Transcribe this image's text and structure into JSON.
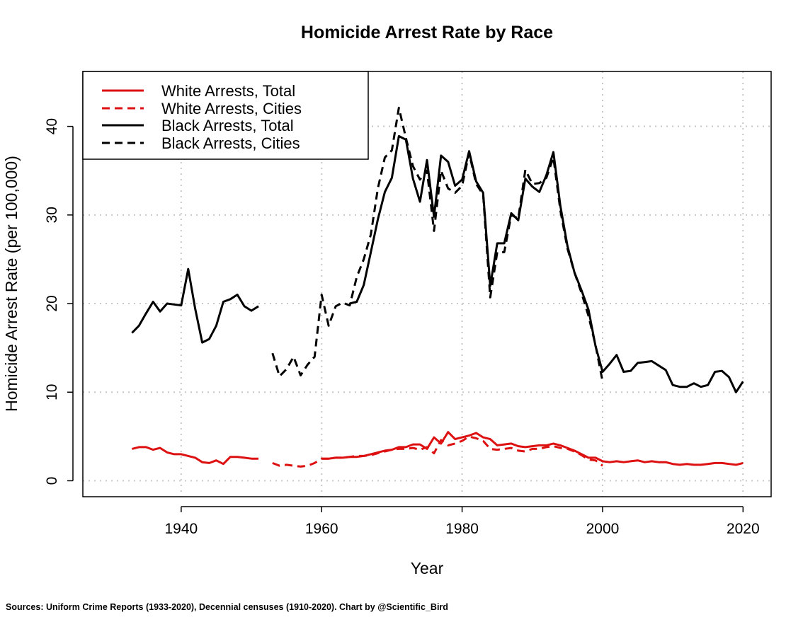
{
  "chart_data": {
    "type": "line",
    "title": "Homicide Arrest Rate by Race",
    "xlabel": "Year",
    "ylabel": "Homicide Arrest Rate (per 100,000)",
    "xlim": [
      1926,
      2024
    ],
    "ylim": [
      -1.8,
      46.2
    ],
    "xticks": [
      1940,
      1960,
      1980,
      2000,
      2020
    ],
    "yticks": [
      0,
      10,
      20,
      30,
      40
    ],
    "grid": true,
    "legend_position": "top-left",
    "caption": "Sources: Uniform Crime Reports (1933-2020), Decennial censuses (1910-2020). Chart by @Scientific_Bird",
    "series": [
      {
        "name": "White Arrests, Total",
        "color": "#dd1111",
        "dash": "solid",
        "segments": [
          {
            "x": [
              1933,
              1934,
              1935,
              1936,
              1937,
              1938,
              1939,
              1940,
              1941,
              1942,
              1943,
              1944,
              1945,
              1946,
              1947,
              1948,
              1949,
              1950,
              1951
            ],
            "y": [
              3.6,
              3.8,
              3.8,
              3.5,
              3.7,
              3.2,
              3.0,
              3.0,
              2.8,
              2.6,
              2.1,
              2.0,
              2.3,
              1.9,
              2.7,
              2.7,
              2.6,
              2.5,
              2.5
            ]
          },
          {
            "x": [
              1960,
              1961,
              1962,
              1963,
              1964,
              1965,
              1966,
              1967,
              1968,
              1969,
              1970,
              1971,
              1972,
              1973,
              1974,
              1975,
              1976,
              1977,
              1978,
              1979,
              1980,
              1981,
              1982,
              1983,
              1984,
              1985,
              1986,
              1987,
              1988,
              1989,
              1990,
              1991,
              1992,
              1993,
              1994,
              1995,
              1996,
              1997,
              1998,
              1999,
              2000,
              2001,
              2002,
              2003,
              2004,
              2005,
              2006,
              2007,
              2008,
              2009,
              2010,
              2011,
              2012,
              2013,
              2014,
              2015,
              2016,
              2017,
              2018,
              2019,
              2020
            ],
            "y": [
              2.5,
              2.5,
              2.6,
              2.6,
              2.7,
              2.7,
              2.8,
              3.0,
              3.2,
              3.4,
              3.5,
              3.8,
              3.8,
              4.1,
              4.1,
              3.6,
              4.9,
              4.2,
              5.5,
              4.7,
              4.9,
              5.1,
              5.4,
              4.9,
              4.7,
              4.0,
              4.1,
              4.2,
              3.9,
              3.8,
              3.9,
              4.0,
              4.0,
              4.2,
              4.0,
              3.7,
              3.4,
              3.0,
              2.6,
              2.6,
              2.2,
              2.1,
              2.2,
              2.1,
              2.2,
              2.3,
              2.1,
              2.2,
              2.1,
              2.1,
              1.9,
              1.8,
              1.9,
              1.8,
              1.8,
              1.9,
              2.0,
              2.0,
              1.9,
              1.8,
              2.0
            ]
          }
        ]
      },
      {
        "name": "White Arrests, Cities",
        "color": "#dd1111",
        "dash": "dashed",
        "segments": [
          {
            "x": [
              1953,
              1954,
              1955,
              1956,
              1957,
              1958,
              1959,
              1960,
              1961,
              1962,
              1963,
              1964,
              1965,
              1966,
              1967,
              1968,
              1969,
              1970,
              1971,
              1972,
              1973,
              1974,
              1975,
              1976,
              1977,
              1978,
              1979,
              1980,
              1981,
              1982,
              1983,
              1984,
              1985,
              1986,
              1987,
              1988,
              1989,
              1990,
              1991,
              1992,
              1993,
              1994,
              1995,
              1996,
              1997,
              1998,
              1999,
              2000
            ],
            "y": [
              2.0,
              1.7,
              1.8,
              1.7,
              1.6,
              1.7,
              2.0,
              2.5,
              2.5,
              2.6,
              2.6,
              2.7,
              2.8,
              2.8,
              2.9,
              3.1,
              3.3,
              3.5,
              3.6,
              3.6,
              3.7,
              3.5,
              3.8,
              3.1,
              4.6,
              4.0,
              4.2,
              4.5,
              5.0,
              4.8,
              4.5,
              3.6,
              3.5,
              3.6,
              3.7,
              3.4,
              3.3,
              3.6,
              3.6,
              3.8,
              3.9,
              3.7,
              3.6,
              3.3,
              2.9,
              2.4,
              2.3,
              1.7
            ]
          }
        ]
      },
      {
        "name": "Black Arrests, Total",
        "color": "#000000",
        "dash": "solid",
        "segments": [
          {
            "x": [
              1933,
              1934,
              1935,
              1936,
              1937,
              1938,
              1939,
              1940,
              1941,
              1942,
              1943,
              1944,
              1945,
              1946,
              1947,
              1948,
              1949,
              1950,
              1951
            ],
            "y": [
              16.7,
              17.5,
              18.9,
              20.2,
              19.1,
              20.0,
              19.9,
              19.8,
              23.9,
              19.4,
              15.6,
              16.0,
              17.5,
              20.2,
              20.5,
              21.0,
              19.7,
              19.2,
              19.7
            ]
          },
          {
            "x": [
              1964,
              1965,
              1966,
              1967,
              1968,
              1969,
              1970,
              1971,
              1972,
              1973,
              1974,
              1975,
              1976,
              1977,
              1978,
              1979,
              1980,
              1981,
              1982,
              1983,
              1984,
              1985,
              1986,
              1987,
              1988,
              1989,
              1990,
              1991,
              1992,
              1993,
              1994,
              1995,
              1996,
              1997,
              1998,
              1999,
              2000,
              2001,
              2002,
              2003,
              2004,
              2005,
              2006,
              2007,
              2008,
              2009,
              2010,
              2011,
              2012,
              2013,
              2014,
              2015,
              2016,
              2017,
              2018,
              2019,
              2020
            ],
            "y": [
              20.0,
              20.2,
              22.1,
              25.8,
              29.5,
              32.6,
              34.2,
              38.9,
              38.5,
              34.1,
              31.5,
              36.2,
              29.8,
              36.7,
              36.0,
              33.3,
              34.0,
              37.2,
              33.8,
              32.5,
              22.0,
              26.8,
              26.8,
              30.2,
              29.4,
              34.1,
              33.2,
              32.6,
              34.5,
              37.1,
              31.0,
              26.5,
              23.5,
              21.5,
              19.3,
              15.2,
              12.3,
              13.2,
              14.2,
              12.3,
              12.4,
              13.3,
              13.4,
              13.5,
              13.0,
              12.5,
              10.8,
              10.6,
              10.6,
              11.0,
              10.6,
              10.8,
              12.3,
              12.4,
              11.7,
              10.0,
              11.2
            ]
          }
        ]
      },
      {
        "name": "Black Arrests, Cities",
        "color": "#000000",
        "dash": "dashed",
        "segments": [
          {
            "x": [
              1953,
              1954,
              1955,
              1956,
              1957,
              1958,
              1959,
              1960,
              1961,
              1962,
              1963,
              1964,
              1965,
              1966,
              1967,
              1968,
              1969,
              1970,
              1971,
              1972,
              1973,
              1974,
              1975,
              1976,
              1977,
              1978,
              1979,
              1980,
              1981,
              1982,
              1983,
              1984,
              1985,
              1986,
              1987,
              1988,
              1989,
              1990,
              1991,
              1992,
              1993,
              1994,
              1995,
              1996,
              1997,
              1998,
              1999,
              2000
            ],
            "y": [
              14.4,
              11.8,
              12.6,
              14.0,
              11.9,
              13.1,
              14.0,
              21.0,
              17.5,
              19.7,
              20.1,
              19.8,
              23.0,
              25.0,
              27.8,
              33.0,
              36.5,
              37.3,
              42.1,
              38.7,
              35.5,
              34.0,
              35.0,
              28.2,
              35.0,
              33.0,
              32.5,
              33.3,
              37.0,
              33.5,
              32.3,
              20.7,
              25.8,
              25.8,
              30.0,
              29.6,
              35.1,
              33.5,
              33.6,
              34.2,
              36.5,
              30.5,
              26.2,
              23.5,
              21.2,
              18.6,
              15.3,
              11.2
            ]
          }
        ]
      }
    ]
  }
}
